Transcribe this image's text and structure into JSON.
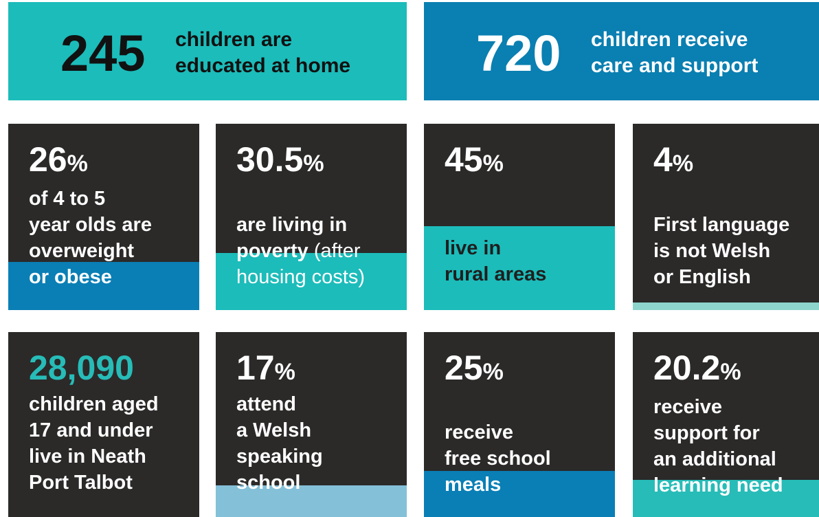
{
  "banners": [
    {
      "value": 245,
      "lines": [
        "children are",
        "educated at home"
      ],
      "color": "#1cbcba",
      "number_color": "#111111",
      "text_color": "#111111"
    },
    {
      "value": 720,
      "lines": [
        "children receive",
        "care and support"
      ],
      "color": "#0a7fb1",
      "number_color": "#ffffff",
      "text_color": "#ffffff"
    }
  ],
  "tiles": [
    {
      "value": 26,
      "unit": "%",
      "lines": [
        "of 4 to 5",
        "year olds are",
        "overweight",
        "or obese"
      ],
      "bar_color": "#0a7fb5",
      "number_color": "#ffffff",
      "text_color": "#ffffff"
    },
    {
      "value": 30.5,
      "unit": "%",
      "lines": [
        "are living in",
        [
          {
            "text": "poverty"
          },
          {
            "text": " (after",
            "light": true
          }
        ],
        [
          {
            "text": "housing costs)",
            "light": true
          }
        ]
      ],
      "bar_color": "#1cbcba",
      "number_color": "#ffffff",
      "text_color": "#ffffff"
    },
    {
      "value": 45,
      "unit": "%",
      "lines": [
        "live in",
        "rural areas"
      ],
      "bar_color": "#1cbcba",
      "number_color": "#ffffff",
      "text_color": "#1f1f1f"
    },
    {
      "value": 4,
      "unit": "%",
      "lines": [
        "First language",
        "is not Welsh",
        "or English"
      ],
      "bar_color": "#8dd5cc",
      "number_color": "#ffffff",
      "text_color": "#ffffff"
    },
    {
      "value": "28,090",
      "lines": [
        "children aged",
        "17 and under",
        "live in Neath",
        "Port Talbot"
      ],
      "number_color": "#27bcb8",
      "text_color": "#ffffff"
    },
    {
      "value": 17,
      "unit": "%",
      "lines": [
        "attend",
        "a Welsh",
        "speaking",
        "school"
      ],
      "bar_color": "#85c0d9",
      "number_color": "#ffffff",
      "text_color": "#ffffff"
    },
    {
      "value": 25,
      "unit": "%",
      "lines": [
        "receive",
        "free school",
        "meals"
      ],
      "bar_color": "#0a7fb5",
      "number_color": "#ffffff",
      "text_color": "#ffffff"
    },
    {
      "value": 20.2,
      "unit": "%",
      "lines": [
        "receive",
        "support for",
        "an additional",
        "learning need"
      ],
      "bar_color": "#27bcb8",
      "number_color": "#ffffff",
      "text_color": "#ffffff"
    }
  ]
}
